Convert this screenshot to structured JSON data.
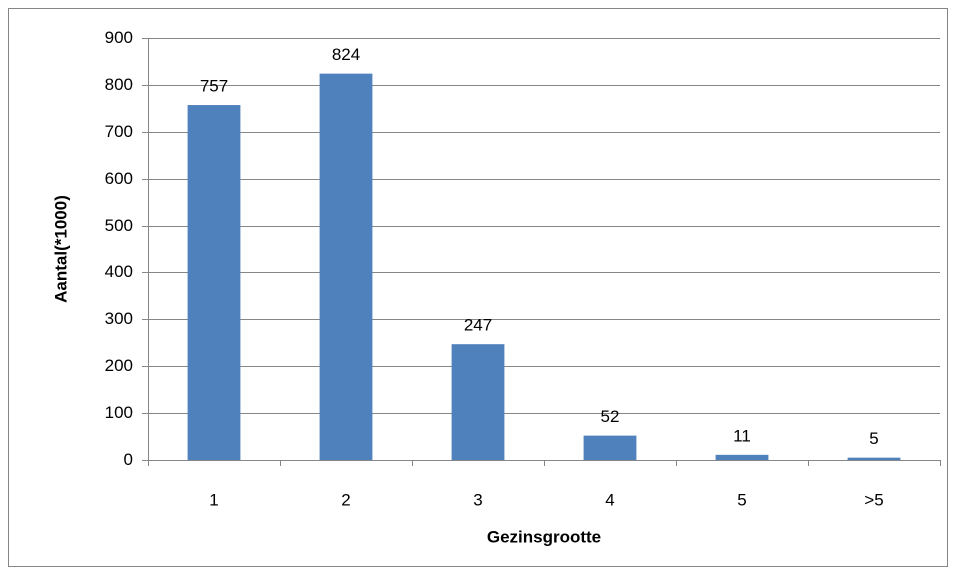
{
  "chart_data": {
    "type": "bar",
    "x_label": "Gezinsgrootte",
    "y_label": "Aantal(*1000)",
    "categories": [
      "1",
      "2",
      "3",
      "4",
      "5",
      ">5"
    ],
    "values": [
      757,
      824,
      247,
      52,
      11,
      5
    ],
    "color": "#4f81bd",
    "ylim": [
      0,
      900
    ],
    "yticks": [
      0,
      100,
      200,
      300,
      400,
      500,
      600,
      700,
      800,
      900
    ],
    "grid": true
  }
}
